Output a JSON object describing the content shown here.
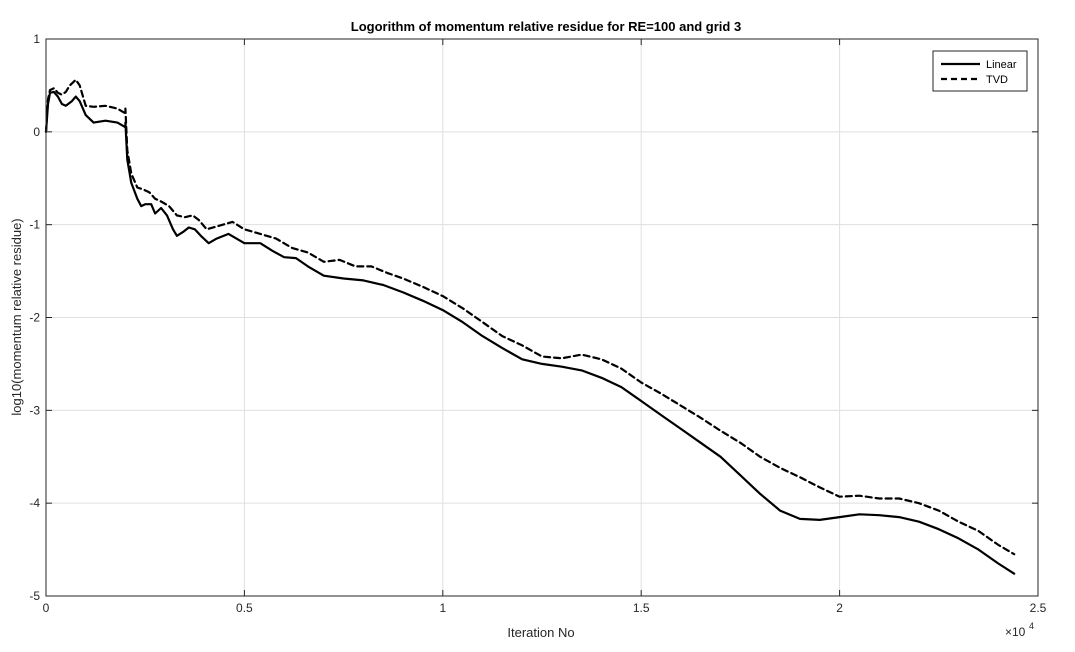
{
  "chart_data": {
    "type": "line",
    "title": "Logorithm of momentum relative residue for RE=100 and grid 3",
    "xlabel": "Iteration No",
    "ylabel": "log10(momentum relative residue)",
    "x_exponent_label": "×10",
    "x_exponent_power": "4",
    "xlim": [
      0,
      2.5
    ],
    "ylim": [
      -5,
      1
    ],
    "xticks": [
      0,
      0.5,
      1,
      1.5,
      2,
      2.5
    ],
    "xtick_labels": [
      "0",
      "0.5",
      "1",
      "1.5",
      "2",
      "2.5"
    ],
    "yticks": [
      1,
      0,
      -1,
      -2,
      -3,
      -4,
      -5
    ],
    "ytick_labels": [
      "1",
      "0",
      "-1",
      "-2",
      "-3",
      "-4",
      "-5"
    ],
    "grid": true,
    "legend_position": "top-right",
    "series": [
      {
        "name": "Linear",
        "style": "solid",
        "color": "#000000",
        "points": [
          [
            0.0,
            0.0
          ],
          [
            0.005,
            0.3
          ],
          [
            0.01,
            0.42
          ],
          [
            0.02,
            0.43
          ],
          [
            0.03,
            0.38
          ],
          [
            0.04,
            0.3
          ],
          [
            0.05,
            0.28
          ],
          [
            0.065,
            0.33
          ],
          [
            0.075,
            0.38
          ],
          [
            0.085,
            0.33
          ],
          [
            0.1,
            0.18
          ],
          [
            0.12,
            0.1
          ],
          [
            0.15,
            0.12
          ],
          [
            0.18,
            0.1
          ],
          [
            0.2,
            0.05
          ],
          [
            0.2,
            0.1
          ],
          [
            0.205,
            -0.3
          ],
          [
            0.215,
            -0.55
          ],
          [
            0.23,
            -0.72
          ],
          [
            0.24,
            -0.8
          ],
          [
            0.25,
            -0.78
          ],
          [
            0.265,
            -0.78
          ],
          [
            0.275,
            -0.88
          ],
          [
            0.29,
            -0.82
          ],
          [
            0.305,
            -0.9
          ],
          [
            0.32,
            -1.05
          ],
          [
            0.33,
            -1.12
          ],
          [
            0.345,
            -1.08
          ],
          [
            0.36,
            -1.03
          ],
          [
            0.375,
            -1.05
          ],
          [
            0.39,
            -1.12
          ],
          [
            0.41,
            -1.2
          ],
          [
            0.43,
            -1.15
          ],
          [
            0.46,
            -1.1
          ],
          [
            0.5,
            -1.2
          ],
          [
            0.54,
            -1.2
          ],
          [
            0.57,
            -1.28
          ],
          [
            0.6,
            -1.35
          ],
          [
            0.63,
            -1.36
          ],
          [
            0.66,
            -1.45
          ],
          [
            0.7,
            -1.55
          ],
          [
            0.75,
            -1.58
          ],
          [
            0.8,
            -1.6
          ],
          [
            0.85,
            -1.65
          ],
          [
            0.9,
            -1.73
          ],
          [
            0.95,
            -1.82
          ],
          [
            1.0,
            -1.92
          ],
          [
            1.05,
            -2.05
          ],
          [
            1.1,
            -2.2
          ],
          [
            1.15,
            -2.33
          ],
          [
            1.2,
            -2.45
          ],
          [
            1.25,
            -2.5
          ],
          [
            1.3,
            -2.53
          ],
          [
            1.35,
            -2.57
          ],
          [
            1.4,
            -2.65
          ],
          [
            1.45,
            -2.75
          ],
          [
            1.5,
            -2.9
          ],
          [
            1.55,
            -3.05
          ],
          [
            1.6,
            -3.2
          ],
          [
            1.65,
            -3.35
          ],
          [
            1.7,
            -3.5
          ],
          [
            1.75,
            -3.7
          ],
          [
            1.8,
            -3.9
          ],
          [
            1.85,
            -4.08
          ],
          [
            1.9,
            -4.17
          ],
          [
            1.95,
            -4.18
          ],
          [
            2.0,
            -4.15
          ],
          [
            2.05,
            -4.12
          ],
          [
            2.1,
            -4.13
          ],
          [
            2.15,
            -4.15
          ],
          [
            2.2,
            -4.2
          ],
          [
            2.25,
            -4.28
          ],
          [
            2.3,
            -4.38
          ],
          [
            2.35,
            -4.5
          ],
          [
            2.4,
            -4.65
          ],
          [
            2.44,
            -4.76
          ]
        ]
      },
      {
        "name": "TVD",
        "style": "dashed",
        "color": "#000000",
        "points": [
          [
            0.0,
            0.0
          ],
          [
            0.005,
            0.35
          ],
          [
            0.01,
            0.45
          ],
          [
            0.02,
            0.47
          ],
          [
            0.03,
            0.42
          ],
          [
            0.04,
            0.4
          ],
          [
            0.05,
            0.43
          ],
          [
            0.06,
            0.5
          ],
          [
            0.075,
            0.56
          ],
          [
            0.085,
            0.5
          ],
          [
            0.1,
            0.28
          ],
          [
            0.12,
            0.27
          ],
          [
            0.15,
            0.28
          ],
          [
            0.18,
            0.25
          ],
          [
            0.2,
            0.2
          ],
          [
            0.2,
            0.25
          ],
          [
            0.205,
            -0.2
          ],
          [
            0.215,
            -0.45
          ],
          [
            0.23,
            -0.6
          ],
          [
            0.245,
            -0.62
          ],
          [
            0.26,
            -0.65
          ],
          [
            0.275,
            -0.72
          ],
          [
            0.29,
            -0.75
          ],
          [
            0.31,
            -0.8
          ],
          [
            0.33,
            -0.9
          ],
          [
            0.35,
            -0.92
          ],
          [
            0.37,
            -0.9
          ],
          [
            0.385,
            -0.95
          ],
          [
            0.405,
            -1.05
          ],
          [
            0.43,
            -1.02
          ],
          [
            0.47,
            -0.97
          ],
          [
            0.5,
            -1.05
          ],
          [
            0.54,
            -1.1
          ],
          [
            0.58,
            -1.15
          ],
          [
            0.62,
            -1.25
          ],
          [
            0.66,
            -1.3
          ],
          [
            0.7,
            -1.4
          ],
          [
            0.74,
            -1.38
          ],
          [
            0.78,
            -1.45
          ],
          [
            0.82,
            -1.45
          ],
          [
            0.86,
            -1.52
          ],
          [
            0.9,
            -1.58
          ],
          [
            0.95,
            -1.67
          ],
          [
            1.0,
            -1.77
          ],
          [
            1.05,
            -1.9
          ],
          [
            1.1,
            -2.05
          ],
          [
            1.15,
            -2.2
          ],
          [
            1.2,
            -2.3
          ],
          [
            1.25,
            -2.42
          ],
          [
            1.3,
            -2.44
          ],
          [
            1.35,
            -2.4
          ],
          [
            1.4,
            -2.45
          ],
          [
            1.45,
            -2.55
          ],
          [
            1.5,
            -2.7
          ],
          [
            1.55,
            -2.82
          ],
          [
            1.6,
            -2.95
          ],
          [
            1.65,
            -3.08
          ],
          [
            1.7,
            -3.22
          ],
          [
            1.75,
            -3.35
          ],
          [
            1.8,
            -3.5
          ],
          [
            1.85,
            -3.62
          ],
          [
            1.9,
            -3.72
          ],
          [
            1.95,
            -3.83
          ],
          [
            2.0,
            -3.93
          ],
          [
            2.05,
            -3.92
          ],
          [
            2.1,
            -3.95
          ],
          [
            2.15,
            -3.95
          ],
          [
            2.2,
            -4.0
          ],
          [
            2.25,
            -4.08
          ],
          [
            2.3,
            -4.2
          ],
          [
            2.35,
            -4.3
          ],
          [
            2.4,
            -4.45
          ],
          [
            2.44,
            -4.55
          ]
        ]
      }
    ]
  }
}
